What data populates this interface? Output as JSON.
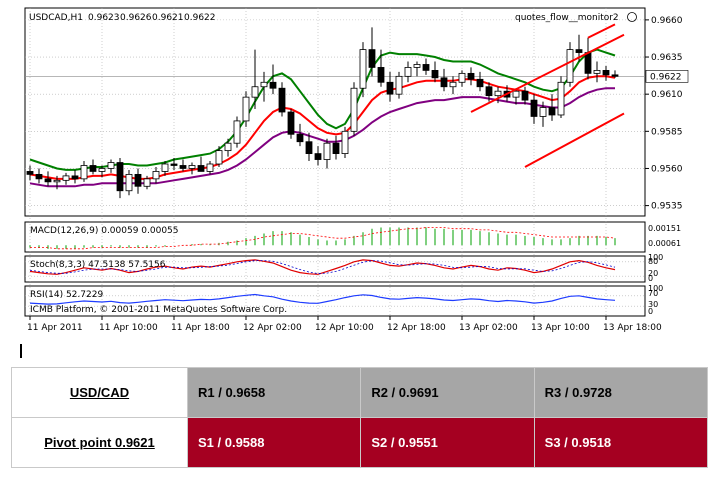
{
  "chart_data": {
    "type": "candlestick",
    "symbol_header": "USDCAD,H1",
    "ohlc_header": [
      "0.9623",
      "0.9626",
      "0.9621",
      "0.9622"
    ],
    "indicator_label": "quotes_flow__monitor2",
    "copyright": "ICMB Platform, © 2001-2011 MetaQuotes Software Corp.",
    "current_price": 0.9622,
    "ylim": [
      0.9528,
      0.9668
    ],
    "y_ticks": [
      0.966,
      0.9635,
      0.961,
      0.9585,
      0.956,
      0.9535
    ],
    "y_tick_labels": [
      "0.9660",
      "0.9635",
      "0.9610",
      "0.9585",
      "0.9560",
      "0.9535"
    ],
    "current_price_label": "0.9622",
    "x_tick_labels": [
      "11 Apr 2011",
      "11 Apr 10:00",
      "11 Apr 18:00",
      "12 Apr 02:00",
      "12 Apr 10:00",
      "12 Apr 18:00",
      "13 Apr 02:00",
      "13 Apr 10:00",
      "13 Apr 18:00"
    ],
    "x_tick_index": [
      0,
      8,
      16,
      24,
      32,
      40,
      48,
      56,
      64
    ],
    "candles": [
      [
        0.9558,
        0.9562,
        0.9552,
        0.9556
      ],
      [
        0.9556,
        0.956,
        0.955,
        0.9553
      ],
      [
        0.9553,
        0.9558,
        0.9548,
        0.9551
      ],
      [
        0.9551,
        0.9555,
        0.9546,
        0.9552
      ],
      [
        0.9552,
        0.9557,
        0.9549,
        0.9555
      ],
      [
        0.9555,
        0.9559,
        0.955,
        0.9553
      ],
      [
        0.9553,
        0.9565,
        0.9551,
        0.9562
      ],
      [
        0.9562,
        0.9566,
        0.9556,
        0.9558
      ],
      [
        0.9558,
        0.9562,
        0.9554,
        0.956
      ],
      [
        0.956,
        0.9566,
        0.9557,
        0.9564
      ],
      [
        0.9564,
        0.9567,
        0.954,
        0.9545
      ],
      [
        0.9545,
        0.9559,
        0.9542,
        0.9556
      ],
      [
        0.9556,
        0.956,
        0.9543,
        0.9548
      ],
      [
        0.9548,
        0.9555,
        0.9546,
        0.9553
      ],
      [
        0.9553,
        0.9561,
        0.955,
        0.9558
      ],
      [
        0.9558,
        0.9565,
        0.9555,
        0.9563
      ],
      [
        0.9563,
        0.9567,
        0.9559,
        0.9562
      ],
      [
        0.9562,
        0.9566,
        0.9558,
        0.956
      ],
      [
        0.956,
        0.9564,
        0.9556,
        0.9562
      ],
      [
        0.9562,
        0.9568,
        0.9559,
        0.9558
      ],
      [
        0.9558,
        0.9565,
        0.9556,
        0.9563
      ],
      [
        0.9563,
        0.9575,
        0.9561,
        0.9572
      ],
      [
        0.9572,
        0.958,
        0.9568,
        0.9577
      ],
      [
        0.9577,
        0.9595,
        0.9574,
        0.9592
      ],
      [
        0.9592,
        0.9612,
        0.9588,
        0.9608
      ],
      [
        0.9608,
        0.964,
        0.96,
        0.9615
      ],
      [
        0.9615,
        0.9625,
        0.9605,
        0.9618
      ],
      [
        0.9618,
        0.963,
        0.961,
        0.9614
      ],
      [
        0.9614,
        0.9618,
        0.9595,
        0.9598
      ],
      [
        0.9598,
        0.96,
        0.958,
        0.9583
      ],
      [
        0.9583,
        0.959,
        0.9575,
        0.9578
      ],
      [
        0.9578,
        0.9584,
        0.9565,
        0.957
      ],
      [
        0.957,
        0.9575,
        0.9562,
        0.9566
      ],
      [
        0.9566,
        0.958,
        0.956,
        0.9577
      ],
      [
        0.9577,
        0.9582,
        0.9566,
        0.957
      ],
      [
        0.957,
        0.9588,
        0.9567,
        0.9585
      ],
      [
        0.9585,
        0.9618,
        0.9582,
        0.9614
      ],
      [
        0.9614,
        0.9645,
        0.9608,
        0.964
      ],
      [
        0.964,
        0.9655,
        0.9622,
        0.9628
      ],
      [
        0.9628,
        0.964,
        0.9615,
        0.9618
      ],
      [
        0.9618,
        0.9625,
        0.9605,
        0.961
      ],
      [
        0.961,
        0.9625,
        0.9607,
        0.9622
      ],
      [
        0.9622,
        0.9632,
        0.9618,
        0.9628
      ],
      [
        0.9628,
        0.9632,
        0.9622,
        0.963
      ],
      [
        0.963,
        0.9634,
        0.9623,
        0.9626
      ],
      [
        0.9626,
        0.9632,
        0.9618,
        0.9621
      ],
      [
        0.9621,
        0.9627,
        0.9612,
        0.9615
      ],
      [
        0.9615,
        0.9622,
        0.961,
        0.9618
      ],
      [
        0.9618,
        0.9626,
        0.9615,
        0.9624
      ],
      [
        0.9624,
        0.9628,
        0.9616,
        0.962
      ],
      [
        0.962,
        0.9625,
        0.9612,
        0.9615
      ],
      [
        0.9615,
        0.9618,
        0.9605,
        0.9609
      ],
      [
        0.9609,
        0.9615,
        0.9604,
        0.9612
      ],
      [
        0.9612,
        0.9616,
        0.9605,
        0.9608
      ],
      [
        0.9608,
        0.9614,
        0.9603,
        0.9612
      ],
      [
        0.9612,
        0.9615,
        0.9603,
        0.9606
      ],
      [
        0.9606,
        0.961,
        0.959,
        0.9595
      ],
      [
        0.9595,
        0.9605,
        0.9588,
        0.9601
      ],
      [
        0.9601,
        0.961,
        0.9592,
        0.9596
      ],
      [
        0.9596,
        0.9622,
        0.9594,
        0.9618
      ],
      [
        0.9618,
        0.9645,
        0.9615,
        0.964
      ],
      [
        0.964,
        0.965,
        0.9632,
        0.9638
      ],
      [
        0.9638,
        0.9648,
        0.962,
        0.9624
      ],
      [
        0.9624,
        0.9632,
        0.9618,
        0.9626
      ],
      [
        0.9626,
        0.9629,
        0.9619,
        0.9623
      ],
      [
        0.9623,
        0.9626,
        0.9621,
        0.9622
      ]
    ],
    "series": [
      {
        "color": "#008000",
        "values": [
          0.9566,
          0.9564,
          0.9562,
          0.956,
          0.9559,
          0.9559,
          0.956,
          0.9561,
          0.9561,
          0.9562,
          0.9563,
          0.9563,
          0.9562,
          0.9562,
          0.9563,
          0.9564,
          0.9566,
          0.9567,
          0.9568,
          0.9569,
          0.957,
          0.9573,
          0.9578,
          0.9585,
          0.9594,
          0.9605,
          0.9615,
          0.9622,
          0.9624,
          0.962,
          0.9612,
          0.9604,
          0.9596,
          0.959,
          0.9587,
          0.959,
          0.96,
          0.9614,
          0.9628,
          0.9636,
          0.9638,
          0.9637,
          0.9637,
          0.9637,
          0.9636,
          0.9635,
          0.9633,
          0.9632,
          0.9632,
          0.9632,
          0.963,
          0.9627,
          0.9624,
          0.9622,
          0.962,
          0.9618,
          0.9615,
          0.9613,
          0.9612,
          0.9614,
          0.9622,
          0.9632,
          0.9638,
          0.964,
          0.9638,
          0.9636
        ]
      },
      {
        "color": "#ff0000",
        "values": [
          0.9556,
          0.9555,
          0.9554,
          0.9553,
          0.9553,
          0.9553,
          0.9554,
          0.9555,
          0.9555,
          0.9556,
          0.9555,
          0.9554,
          0.9553,
          0.9553,
          0.9554,
          0.9556,
          0.9557,
          0.9558,
          0.9559,
          0.956,
          0.9561,
          0.9563,
          0.9566,
          0.957,
          0.9576,
          0.9584,
          0.9592,
          0.9598,
          0.9601,
          0.96,
          0.9597,
          0.9592,
          0.9587,
          0.9584,
          0.9583,
          0.9584,
          0.959,
          0.9598,
          0.9606,
          0.9611,
          0.9613,
          0.9614,
          0.9616,
          0.9618,
          0.9619,
          0.9619,
          0.9619,
          0.9619,
          0.962,
          0.962,
          0.9619,
          0.9617,
          0.9615,
          0.9614,
          0.9613,
          0.9612,
          0.961,
          0.9608,
          0.9606,
          0.9607,
          0.9612,
          0.9618,
          0.9621,
          0.9622,
          0.9622,
          0.9621
        ]
      },
      {
        "color": "#800080",
        "values": [
          0.955,
          0.9549,
          0.9548,
          0.9548,
          0.9548,
          0.9548,
          0.9549,
          0.9549,
          0.955,
          0.955,
          0.955,
          0.955,
          0.955,
          0.955,
          0.955,
          0.9551,
          0.9552,
          0.9553,
          0.9554,
          0.9555,
          0.9556,
          0.9557,
          0.9559,
          0.9562,
          0.9566,
          0.9571,
          0.9576,
          0.9581,
          0.9584,
          0.9585,
          0.9584,
          0.9582,
          0.958,
          0.9578,
          0.9578,
          0.9579,
          0.9582,
          0.9586,
          0.9591,
          0.9595,
          0.9598,
          0.96,
          0.9602,
          0.9604,
          0.9605,
          0.9606,
          0.9606,
          0.9607,
          0.9608,
          0.9608,
          0.9608,
          0.9607,
          0.9606,
          0.9605,
          0.9604,
          0.9604,
          0.9603,
          0.9602,
          0.9601,
          0.9601,
          0.9604,
          0.9608,
          0.9611,
          0.9613,
          0.9614,
          0.9614
        ]
      }
    ],
    "trendlines": [
      {
        "color": "#ff0000",
        "from": [
          49,
          0.9598
        ],
        "to": [
          66,
          0.965
        ]
      },
      {
        "color": "#ff0000",
        "from": [
          55,
          0.9561
        ],
        "to": [
          66,
          0.9597
        ]
      },
      {
        "color": "#ff0000",
        "from": [
          62,
          0.9648
        ],
        "to": [
          65,
          0.9657
        ]
      }
    ],
    "macd": {
      "label": "MACD(12,26,9) 0.00059 0.00055",
      "tick_labels": [
        "0.00151",
        "0.00061"
      ],
      "histogram": [
        -0.0002,
        -0.0002,
        -0.0003,
        -0.0003,
        -0.0003,
        -0.0003,
        -0.0002,
        -0.0002,
        -0.0002,
        -0.0001,
        -0.0002,
        -0.0002,
        -0.0002,
        -0.0002,
        -0.0001,
        -0.0001,
        0,
        0,
        0.0001,
        0.0001,
        0.0001,
        0.0002,
        0.0003,
        0.0004,
        0.0006,
        0.0008,
        0.001,
        0.0012,
        0.0012,
        0.0011,
        0.0009,
        0.0007,
        0.0005,
        0.0004,
        0.0004,
        0.0005,
        0.0008,
        0.0011,
        0.0014,
        0.0015,
        0.0015,
        0.0015,
        0.0015,
        0.0015,
        0.0015,
        0.0014,
        0.0014,
        0.0013,
        0.0013,
        0.0013,
        0.0012,
        0.0011,
        0.001,
        0.0009,
        0.0009,
        0.0008,
        0.0007,
        0.0006,
        0.0005,
        0.0005,
        0.0006,
        0.0008,
        0.0008,
        0.0008,
        0.0007,
        0.0006
      ],
      "signal": [
        -0.0002,
        -0.0002,
        -0.0002,
        -0.0003,
        -0.0003,
        -0.0003,
        -0.0003,
        -0.0002,
        -0.0002,
        -0.0002,
        -0.0002,
        -0.0002,
        -0.0002,
        -0.0002,
        -0.0002,
        -0.0001,
        -0.0001,
        0,
        0,
        0.0001,
        0.0001,
        0.0001,
        0.0002,
        0.0003,
        0.0004,
        0.0005,
        0.0007,
        0.0008,
        0.0009,
        0.001,
        0.001,
        0.0009,
        0.0008,
        0.0007,
        0.0006,
        0.0006,
        0.0007,
        0.0008,
        0.001,
        0.0011,
        0.0012,
        0.0013,
        0.0014,
        0.0014,
        0.0015,
        0.0015,
        0.0015,
        0.0014,
        0.0014,
        0.0014,
        0.0013,
        0.0013,
        0.0012,
        0.0011,
        0.0011,
        0.001,
        0.0009,
        0.0008,
        0.0007,
        0.0007,
        0.0007,
        0.0007,
        0.0007,
        0.0007,
        0.0007,
        0.0006
      ],
      "range": [
        -0.0004,
        0.0018
      ]
    },
    "stoch": {
      "label": "Stoch(8,3,3) 47.5138 57.5156",
      "tick_labels": [
        "100",
        "80",
        "20",
        "0"
      ],
      "main": [
        40,
        35,
        30,
        28,
        35,
        45,
        55,
        50,
        45,
        52,
        45,
        35,
        40,
        50,
        58,
        62,
        55,
        50,
        58,
        62,
        58,
        65,
        72,
        80,
        85,
        88,
        82,
        75,
        60,
        45,
        35,
        30,
        28,
        40,
        52,
        65,
        80,
        88,
        85,
        75,
        65,
        62,
        68,
        75,
        72,
        65,
        55,
        50,
        58,
        65,
        60,
        50,
        45,
        55,
        52,
        45,
        35,
        40,
        50,
        65,
        80,
        85,
        78,
        65,
        55,
        47.5
      ],
      "signal": [
        45,
        40,
        35,
        32,
        32,
        38,
        45,
        50,
        50,
        50,
        48,
        42,
        40,
        45,
        50,
        57,
        58,
        55,
        55,
        57,
        60,
        62,
        66,
        73,
        80,
        85,
        85,
        82,
        73,
        60,
        48,
        37,
        31,
        33,
        40,
        52,
        66,
        78,
        85,
        83,
        76,
        68,
        66,
        69,
        72,
        71,
        65,
        57,
        55,
        58,
        61,
        59,
        52,
        50,
        51,
        51,
        45,
        40,
        42,
        52,
        65,
        77,
        81,
        76,
        67,
        57.5
      ]
    },
    "rsi": {
      "label": "RSI(14) 52.7229",
      "tick_labels": [
        "100",
        "70",
        "30",
        "0"
      ],
      "values": [
        42,
        40,
        38,
        39,
        43,
        47,
        50,
        48,
        46,
        49,
        44,
        42,
        45,
        49,
        52,
        55,
        53,
        51,
        54,
        56,
        55,
        58,
        63,
        68,
        72,
        75,
        70,
        66,
        57,
        50,
        45,
        42,
        41,
        48,
        55,
        63,
        70,
        74,
        71,
        64,
        58,
        57,
        60,
        63,
        61,
        58,
        54,
        52,
        55,
        58,
        56,
        51,
        48,
        52,
        50,
        47,
        42,
        45,
        50,
        60,
        68,
        70,
        64,
        58,
        55,
        52.7
      ]
    }
  },
  "pivot": {
    "pair_label": "USD/CAD",
    "pivot_label": "Pivot point 0.9621",
    "resistance": [
      "R1 / 0.9658",
      "R2 / 0.9691",
      "R3 / 0.9728"
    ],
    "support": [
      "S1 / 0.9588",
      "S2 / 0.9551",
      "S3 / 0.9518"
    ]
  }
}
